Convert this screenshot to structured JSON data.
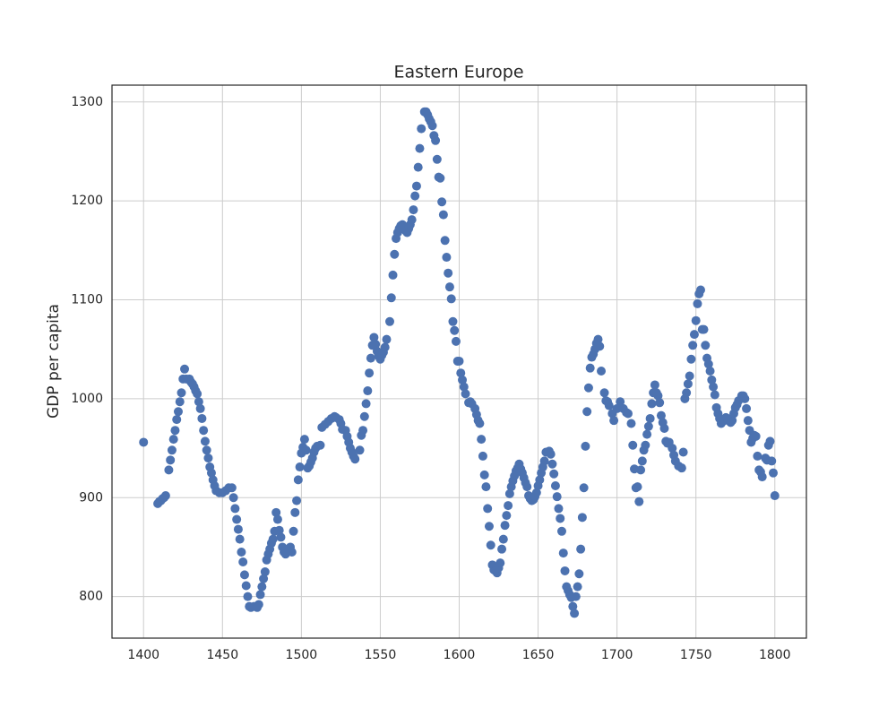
{
  "chart_data": {
    "type": "scatter",
    "title": "Eastern Europe",
    "ylabel": "GDP per capita",
    "color": "#4c72b0",
    "grid": true,
    "xlim": [
      1380,
      1820
    ],
    "ylim": [
      758,
      1317
    ],
    "xticks": [
      1400,
      1450,
      1500,
      1550,
      1600,
      1650,
      1700,
      1750,
      1800
    ],
    "yticks": [
      800,
      900,
      1000,
      1100,
      1200,
      1300
    ],
    "x": [
      1400,
      1409,
      1410,
      1411,
      1412,
      1413,
      1414,
      1416,
      1417,
      1418,
      1419,
      1420,
      1421,
      1422,
      1423,
      1424,
      1425,
      1426,
      1427,
      1429,
      1430,
      1431,
      1432,
      1433,
      1434,
      1435,
      1436,
      1437,
      1438,
      1439,
      1440,
      1441,
      1442,
      1443,
      1444,
      1445,
      1446,
      1448,
      1450,
      1452,
      1454,
      1456,
      1457,
      1458,
      1459,
      1460,
      1461,
      1462,
      1463,
      1464,
      1465,
      1466,
      1467,
      1468,
      1470,
      1472,
      1473,
      1474,
      1475,
      1476,
      1477,
      1478,
      1479,
      1480,
      1481,
      1482,
      1483,
      1484,
      1485,
      1486,
      1487,
      1488,
      1489,
      1490,
      1492,
      1493,
      1494,
      1495,
      1496,
      1497,
      1498,
      1499,
      1500,
      1501,
      1502,
      1503,
      1504,
      1505,
      1506,
      1507,
      1508,
      1509,
      1510,
      1512,
      1513,
      1515,
      1517,
      1519,
      1521,
      1522,
      1524,
      1525,
      1526,
      1528,
      1529,
      1530,
      1531,
      1532,
      1533,
      1534,
      1537,
      1538,
      1539,
      1540,
      1541,
      1542,
      1543,
      1544,
      1545,
      1546,
      1547,
      1548,
      1549,
      1550,
      1551,
      1552,
      1553,
      1554,
      1556,
      1557,
      1558,
      1559,
      1560,
      1561,
      1562,
      1563,
      1564,
      1566,
      1567,
      1568,
      1569,
      1570,
      1571,
      1572,
      1573,
      1574,
      1575,
      1576,
      1578,
      1579,
      1580,
      1581,
      1582,
      1583,
      1584,
      1585,
      1586,
      1587,
      1588,
      1589,
      1590,
      1591,
      1592,
      1593,
      1594,
      1595,
      1596,
      1597,
      1598,
      1599,
      1600,
      1601,
      1602,
      1603,
      1604,
      1606,
      1607,
      1608,
      1610,
      1611,
      1612,
      1613,
      1614,
      1615,
      1616,
      1617,
      1618,
      1619,
      1620,
      1621,
      1622,
      1623,
      1624,
      1625,
      1626,
      1627,
      1628,
      1629,
      1630,
      1631,
      1632,
      1633,
      1634,
      1635,
      1636,
      1637,
      1638,
      1639,
      1640,
      1641,
      1642,
      1643,
      1644,
      1645,
      1646,
      1647,
      1648,
      1649,
      1650,
      1651,
      1652,
      1653,
      1654,
      1655,
      1657,
      1658,
      1659,
      1660,
      1661,
      1662,
      1663,
      1664,
      1665,
      1666,
      1667,
      1668,
      1669,
      1670,
      1671,
      1672,
      1673,
      1674,
      1675,
      1676,
      1677,
      1678,
      1679,
      1680,
      1681,
      1682,
      1683,
      1684,
      1685,
      1686,
      1687,
      1688,
      1689,
      1690,
      1692,
      1693,
      1694,
      1695,
      1697,
      1698,
      1700,
      1702,
      1704,
      1706,
      1707,
      1709,
      1710,
      1711,
      1712,
      1713,
      1714,
      1715,
      1716,
      1717,
      1718,
      1719,
      1720,
      1721,
      1722,
      1723,
      1724,
      1725,
      1726,
      1727,
      1728,
      1729,
      1730,
      1731,
      1732,
      1733,
      1735,
      1736,
      1737,
      1739,
      1741,
      1742,
      1743,
      1744,
      1745,
      1746,
      1747,
      1748,
      1749,
      1750,
      1751,
      1752,
      1753,
      1754,
      1755,
      1756,
      1757,
      1758,
      1759,
      1760,
      1761,
      1762,
      1763,
      1764,
      1765,
      1766,
      1768,
      1769,
      1770,
      1772,
      1773,
      1774,
      1775,
      1776,
      1777,
      1779,
      1780,
      1781,
      1782,
      1783,
      1784,
      1785,
      1786,
      1787,
      1788,
      1789,
      1790,
      1791,
      1792,
      1794,
      1795,
      1796,
      1797,
      1798,
      1799,
      1800
    ],
    "values": [
      956,
      894,
      896,
      897,
      899,
      900,
      902,
      928,
      938,
      948,
      959,
      968,
      979,
      987,
      997,
      1006,
      1020,
      1030,
      1020,
      1020,
      1017,
      1015,
      1012,
      1008,
      1005,
      997,
      990,
      980,
      968,
      957,
      948,
      940,
      931,
      925,
      918,
      912,
      907,
      905,
      905,
      907,
      910,
      910,
      900,
      889,
      878,
      868,
      858,
      845,
      835,
      822,
      811,
      800,
      790,
      789,
      790,
      789,
      792,
      802,
      810,
      818,
      825,
      837,
      843,
      848,
      854,
      858,
      866,
      885,
      878,
      867,
      860,
      850,
      845,
      843,
      846,
      850,
      845,
      866,
      885,
      897,
      918,
      931,
      945,
      951,
      959,
      948,
      930,
      932,
      936,
      940,
      946,
      950,
      952,
      953,
      971,
      974,
      977,
      980,
      982,
      981,
      979,
      975,
      969,
      968,
      962,
      956,
      950,
      946,
      942,
      939,
      948,
      963,
      968,
      982,
      995,
      1008,
      1026,
      1041,
      1054,
      1062,
      1055,
      1048,
      1043,
      1040,
      1044,
      1047,
      1052,
      1060,
      1078,
      1102,
      1125,
      1146,
      1162,
      1168,
      1172,
      1175,
      1176,
      1170,
      1168,
      1172,
      1176,
      1181,
      1191,
      1205,
      1215,
      1234,
      1253,
      1273,
      1290,
      1290,
      1287,
      1283,
      1280,
      1276,
      1266,
      1261,
      1242,
      1224,
      1223,
      1199,
      1186,
      1160,
      1143,
      1127,
      1113,
      1101,
      1078,
      1069,
      1058,
      1038,
      1038,
      1026,
      1019,
      1012,
      1005,
      996,
      997,
      995,
      990,
      984,
      978,
      975,
      959,
      942,
      923,
      911,
      889,
      871,
      852,
      832,
      827,
      826,
      824,
      829,
      834,
      848,
      858,
      872,
      882,
      892,
      904,
      911,
      917,
      922,
      927,
      930,
      934,
      929,
      925,
      920,
      915,
      911,
      902,
      899,
      897,
      898,
      901,
      905,
      912,
      918,
      925,
      931,
      937,
      946,
      947,
      944,
      934,
      924,
      912,
      901,
      889,
      879,
      866,
      844,
      826,
      810,
      806,
      802,
      799,
      790,
      783,
      800,
      810,
      823,
      848,
      880,
      910,
      952,
      987,
      1011,
      1031,
      1042,
      1045,
      1050,
      1056,
      1060,
      1053,
      1028,
      1006,
      998,
      997,
      993,
      985,
      978,
      990,
      997,
      990,
      986,
      985,
      975,
      953,
      929,
      910,
      911,
      896,
      928,
      937,
      948,
      953,
      964,
      972,
      980,
      995,
      1006,
      1014,
      1006,
      1003,
      996,
      983,
      976,
      970,
      957,
      955,
      956,
      950,
      943,
      937,
      932,
      930,
      946,
      1000,
      1006,
      1015,
      1023,
      1040,
      1054,
      1065,
      1079,
      1096,
      1106,
      1110,
      1070,
      1070,
      1054,
      1041,
      1035,
      1028,
      1019,
      1012,
      1004,
      991,
      985,
      980,
      975,
      978,
      981,
      980,
      976,
      978,
      985,
      991,
      994,
      998,
      1003,
      1003,
      1000,
      990,
      978,
      968,
      956,
      960,
      963,
      962,
      942,
      928,
      926,
      921,
      940,
      938,
      953,
      957,
      937,
      925,
      902
    ]
  }
}
